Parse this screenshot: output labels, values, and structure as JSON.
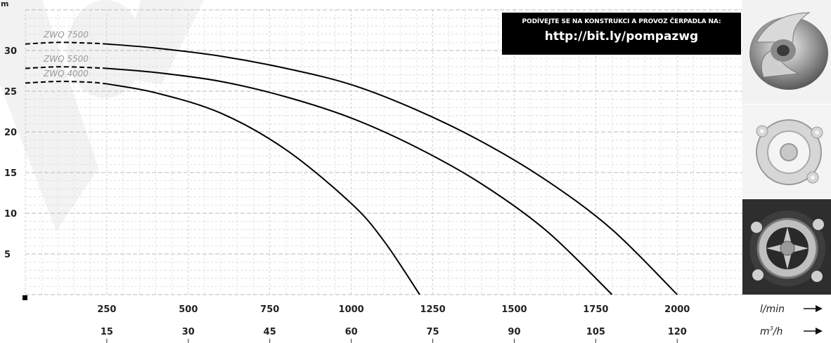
{
  "promo": {
    "line1": "PODÍVEJTE SE NA KONSTRUKCI A PROVOZ ČERPADLA NA:",
    "line2": "http://bit.ly/pompazwg"
  },
  "axis": {
    "y_unit": "m",
    "x_unit_primary": "l/min",
    "x_unit_secondary_base": "m",
    "x_unit_secondary_sup": "3",
    "x_unit_secondary_tail": "/h"
  },
  "chart_data": {
    "type": "line",
    "xlabel": "l/min",
    "ylabel": "m",
    "xlim": [
      0,
      2200
    ],
    "ylim": [
      0,
      35
    ],
    "grid": true,
    "x_ticks": [
      250,
      500,
      750,
      1000,
      1250,
      1500,
      1750,
      2000
    ],
    "x2_ticks": [
      15,
      30,
      45,
      60,
      75,
      90,
      105,
      120
    ],
    "y_ticks": [
      5,
      10,
      15,
      20,
      25,
      30
    ],
    "series": [
      {
        "name": "ZWQ 7500",
        "x": [
          0,
          100,
          200,
          250,
          400,
          600,
          800,
          1000,
          1200,
          1400,
          1600,
          1800,
          2000
        ],
        "y": [
          30.8,
          31.0,
          30.9,
          30.8,
          30.3,
          29.3,
          27.8,
          25.8,
          22.7,
          18.8,
          14.0,
          8.0,
          0
        ]
      },
      {
        "name": "ZWQ 5500",
        "x": [
          0,
          100,
          200,
          250,
          400,
          600,
          800,
          1000,
          1200,
          1400,
          1600,
          1800
        ],
        "y": [
          27.8,
          28.0,
          27.9,
          27.8,
          27.3,
          26.2,
          24.3,
          21.7,
          18.1,
          13.6,
          7.8,
          0
        ]
      },
      {
        "name": "ZWQ 4000",
        "x": [
          0,
          100,
          200,
          250,
          400,
          600,
          800,
          1000,
          1100,
          1210
        ],
        "y": [
          26.0,
          26.2,
          26.1,
          25.9,
          24.8,
          22.3,
          17.8,
          11.2,
          6.6,
          0
        ]
      }
    ]
  }
}
